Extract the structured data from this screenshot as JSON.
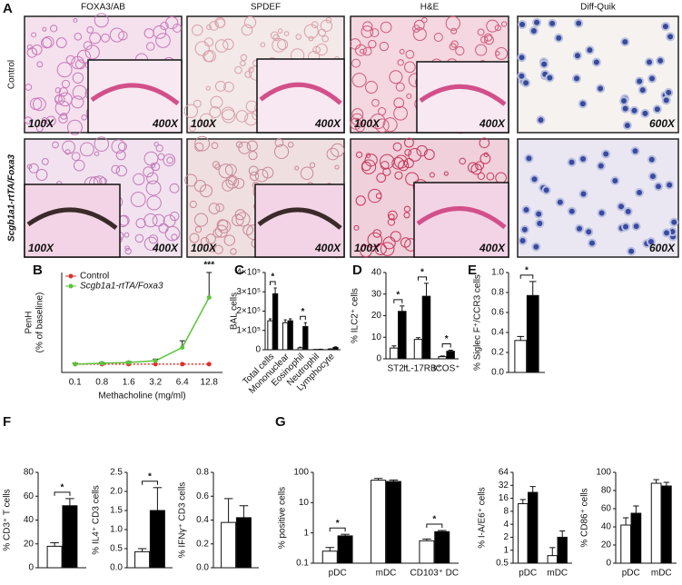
{
  "panel_labels": [
    "A",
    "B",
    "C",
    "D",
    "E",
    "F",
    "G"
  ],
  "micrographs": {
    "column_titles": [
      "FOXA3/AB",
      "SPDEF",
      "H&E",
      "Diff-Quik"
    ],
    "row_titles": [
      "Control",
      "Scgb1a1-rtTA/Foxa3"
    ],
    "magnifications": [
      [
        [
          "100X",
          "400X"
        ],
        [
          "100X",
          "400X"
        ],
        [
          "100X",
          "400X"
        ],
        [
          "600X"
        ]
      ],
      [
        [
          "100X",
          "400X"
        ],
        [
          "100X",
          "400X"
        ],
        [
          "100X",
          "400X"
        ],
        [
          "600X"
        ]
      ]
    ]
  },
  "chart_data": [
    {
      "type": "line",
      "ylabel": [
        "PenH",
        "(% of baseline)"
      ],
      "xlabel": "Methacholine (mg/ml)",
      "categories": [
        "0.1",
        "0.8",
        "1.6",
        "3.2",
        "6.4",
        "12.8"
      ],
      "ylim": [
        0,
        6
      ],
      "series": [
        {
          "name": "Control",
          "color": "#e0302a",
          "dashed": true,
          "values": [
            0.5,
            0.5,
            0.5,
            0.5,
            0.5,
            0.5
          ]
        },
        {
          "name": "Scgb1a1-rtTA/Foxa3",
          "color": "#5ac43a",
          "dashed": false,
          "values": [
            0.5,
            0.55,
            0.6,
            0.7,
            1.5,
            4.5
          ],
          "errors": [
            0.05,
            0.05,
            0.05,
            0.1,
            0.4,
            1.5
          ]
        }
      ],
      "significance": [
        null,
        null,
        null,
        null,
        null,
        "***"
      ]
    },
    {
      "type": "bar",
      "ylabel": "BAL cells",
      "categories": [
        "Total cells",
        "Mononuclear",
        "Eosinophil",
        "Neutrophil",
        "Lymphocyte"
      ],
      "ylim": [
        0,
        400000
      ],
      "yticks": [
        0,
        {
          "value": 100000,
          "label": "1×10⁵"
        },
        {
          "value": 200000,
          "label": "2×10⁵"
        },
        {
          "value": 300000,
          "label": "3×10⁵"
        },
        {
          "value": 400000,
          "label": "4×10⁵"
        }
      ],
      "series": [
        {
          "color": "#ffffff",
          "values": [
            150000,
            140000,
            10000,
            1000,
            4000
          ],
          "errors": [
            10000,
            15000,
            3000,
            500,
            1000
          ]
        },
        {
          "color": "#000000",
          "values": [
            290000,
            150000,
            120000,
            2000,
            12000
          ],
          "errors": [
            30000,
            10000,
            20000,
            1000,
            3000
          ]
        }
      ],
      "significance": [
        "*",
        null,
        "*",
        null,
        null
      ]
    },
    {
      "type": "bar",
      "ylabel": "% ILC2⁺ cells",
      "categories": [
        "ST2⁺",
        "IL-17RB⁺",
        "ICOS⁺"
      ],
      "ylim": [
        0,
        40
      ],
      "yticks": [
        0,
        10,
        20,
        30,
        40
      ],
      "series": [
        {
          "color": "#ffffff",
          "values": [
            5,
            9,
            1
          ],
          "errors": [
            1,
            0.8,
            0.3
          ]
        },
        {
          "color": "#000000",
          "values": [
            22,
            29,
            3.5
          ],
          "errors": [
            2.5,
            6,
            0.5
          ]
        }
      ],
      "significance": [
        "*",
        "*",
        "*"
      ]
    },
    {
      "type": "bar",
      "ylabel": "% Siglec F⁺/CCR3 cells",
      "categories": [
        null
      ],
      "ylim": [
        0,
        1
      ],
      "yticks": [
        {
          "value": 0,
          "label": "0.0"
        },
        0.2,
        0.4,
        0.6,
        0.8,
        {
          "value": 1,
          "label": "1.0"
        }
      ],
      "series": [
        {
          "color": "#ffffff",
          "values": [
            0.32
          ],
          "errors": [
            0.04
          ]
        },
        {
          "color": "#000000",
          "values": [
            0.77
          ],
          "errors": [
            0.14
          ]
        }
      ],
      "significance": [
        "*"
      ]
    },
    {
      "type": "bar",
      "ylabel": "% CD3⁺ T cells",
      "categories": [
        null
      ],
      "ylim": [
        0,
        80
      ],
      "yticks": [
        0,
        20,
        40,
        60,
        80
      ],
      "series": [
        {
          "color": "#ffffff",
          "values": [
            18
          ],
          "errors": [
            3
          ]
        },
        {
          "color": "#000000",
          "values": [
            52
          ],
          "errors": [
            6
          ]
        }
      ],
      "significance": [
        "*"
      ]
    },
    {
      "type": "bar",
      "ylabel": "% IL4⁺ CD3 cells",
      "categories": [
        null
      ],
      "ylim": [
        0,
        2.5
      ],
      "yticks": [
        {
          "value": 0,
          "label": "0.0"
        },
        0.5,
        {
          "value": 1,
          "label": "1.0"
        },
        1.5,
        {
          "value": 2,
          "label": "2.0"
        },
        2.5
      ],
      "series": [
        {
          "color": "#ffffff",
          "values": [
            0.42
          ],
          "errors": [
            0.08
          ]
        },
        {
          "color": "#000000",
          "values": [
            1.5
          ],
          "errors": [
            0.6
          ]
        }
      ],
      "significance": [
        "*"
      ]
    },
    {
      "type": "bar",
      "ylabel": "% IFNγ⁺ CD3 cells",
      "categories": [
        null
      ],
      "ylim": [
        0,
        0.8
      ],
      "yticks": [
        {
          "value": 0,
          "label": "0.0"
        },
        0.2,
        0.4,
        0.6,
        0.8
      ],
      "series": [
        {
          "color": "#ffffff",
          "values": [
            0.38
          ],
          "errors": [
            0.2
          ]
        },
        {
          "color": "#000000",
          "values": [
            0.42
          ],
          "errors": [
            0.1
          ]
        }
      ]
    },
    {
      "type": "bar",
      "ylabel": "% positive cells",
      "categories": [
        "pDC",
        "mDC",
        "CD103⁺ DC"
      ],
      "log_scale": true,
      "ylim": [
        0.1,
        100
      ],
      "yticks": [
        0.1,
        1,
        10,
        100
      ],
      "series": [
        {
          "color": "#ffffff",
          "values": [
            0.25,
            55,
            0.55
          ],
          "errors": [
            0.08,
            8,
            0.08
          ]
        },
        {
          "color": "#000000",
          "values": [
            0.8,
            50,
            1.1
          ],
          "errors": [
            0.1,
            6,
            0.1
          ]
        }
      ],
      "significance": [
        "*",
        null,
        "*"
      ]
    },
    {
      "type": "bar",
      "ylabel": "% I-A/E6⁺ cells",
      "categories": [
        "pDC",
        "mDC"
      ],
      "log_scale": true,
      "ylim": [
        0.5,
        64
      ],
      "yticks": [
        0.5,
        1,
        2,
        4,
        8,
        16,
        32,
        64
      ],
      "series": [
        {
          "color": "#ffffff",
          "values": [
            12,
            0.75
          ],
          "errors": [
            3,
            0.4
          ]
        },
        {
          "color": "#000000",
          "values": [
            22,
            2
          ],
          "errors": [
            8,
            0.8
          ]
        }
      ]
    },
    {
      "type": "bar",
      "ylabel": "% CD86⁺ cells",
      "categories": [
        "pDC",
        "mDC"
      ],
      "ylim": [
        0,
        100
      ],
      "yticks": [
        0,
        20,
        40,
        60,
        80,
        100
      ],
      "series": [
        {
          "color": "#ffffff",
          "values": [
            42,
            88
          ],
          "errors": [
            8,
            4
          ]
        },
        {
          "color": "#000000",
          "values": [
            55,
            85
          ],
          "errors": [
            8,
            4
          ]
        }
      ]
    }
  ]
}
